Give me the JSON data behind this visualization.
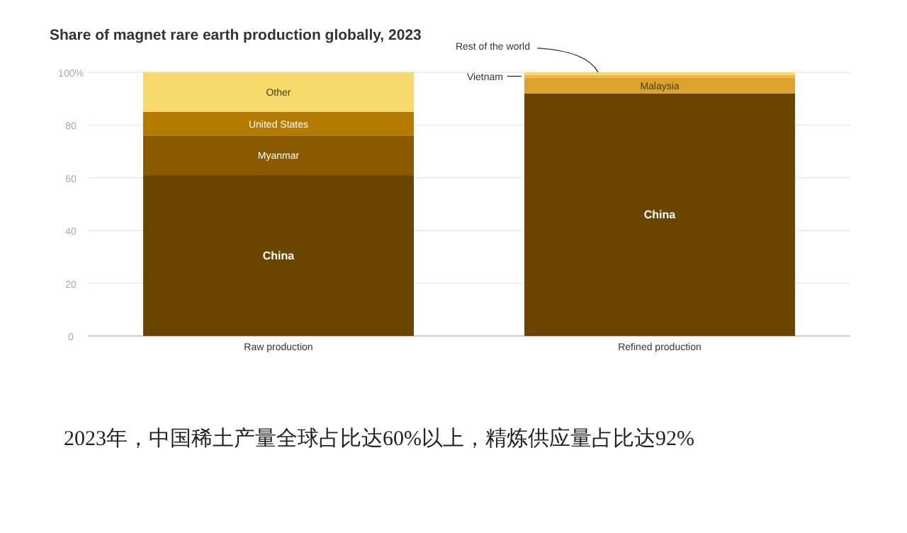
{
  "chart_data": {
    "type": "bar",
    "title": "Share of magnet rare earth production globally, 2023",
    "categories": [
      "Raw production",
      "Refined production"
    ],
    "stacked": true,
    "series": [
      {
        "name": "China",
        "color": "#6b4500",
        "values": [
          61,
          92
        ]
      },
      {
        "name": "Myanmar",
        "color": "#8a5a00",
        "values": [
          15,
          null
        ]
      },
      {
        "name": "United States",
        "color": "#b47a00",
        "values": [
          9,
          null
        ]
      },
      {
        "name": "Other",
        "color": "#f8da6c",
        "values": [
          15,
          null
        ]
      },
      {
        "name": "Malaysia",
        "color": "#dca42e",
        "values": [
          null,
          6
        ]
      },
      {
        "name": "Vietnam",
        "color": "#efb73a",
        "values": [
          null,
          1
        ]
      },
      {
        "name": "Rest of the world",
        "color": "#fbd95a",
        "values": [
          null,
          1
        ]
      }
    ],
    "ylim": [
      0,
      100
    ],
    "yticks": [
      0,
      20,
      40,
      60,
      80,
      {
        "value": 100,
        "label": "100%"
      }
    ],
    "grid": "y",
    "annotations": [
      "2023年，中国稀土产量全球占比达60%以上，精炼供应量占比达92%"
    ]
  }
}
